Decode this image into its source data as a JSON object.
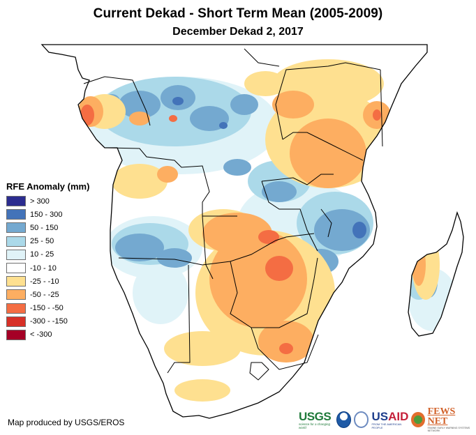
{
  "header": {
    "title": "Current Dekad - Short Term Mean (2005-2009)",
    "subtitle": "December Dekad 2, 2017"
  },
  "legend": {
    "title": "RFE Anomaly (mm)",
    "items": [
      {
        "label": "> 300",
        "color": "#2b2c8f"
      },
      {
        "label": "150 - 300",
        "color": "#4373b9"
      },
      {
        "label": "50 - 150",
        "color": "#74a9d0"
      },
      {
        "label": "25 - 50",
        "color": "#abd9e9"
      },
      {
        "label": "10 - 25",
        "color": "#e0f3f8"
      },
      {
        "label": "-10 - 10",
        "color": "#ffffff"
      },
      {
        "label": "-25 - -10",
        "color": "#fee090"
      },
      {
        "label": "-50 - -25",
        "color": "#fdae61"
      },
      {
        "label": "-150 - -50",
        "color": "#f46d43"
      },
      {
        "label": "-300 - -150",
        "color": "#d73027"
      },
      {
        "label": "< -300",
        "color": "#a50026"
      }
    ]
  },
  "footer": {
    "credit": "Map produced by USGS/EROS",
    "logos": {
      "usgs": {
        "word": "USGS",
        "tag": "science for a changing world"
      },
      "noaa": {
        "name": "NOAA"
      },
      "usaid": {
        "word_blue": "US",
        "word_red": "AID",
        "tag": "FROM THE AMERICAN PEOPLE"
      },
      "fews": {
        "word": "FEWS NET",
        "tag": "FAMINE EARLY WARNING SYSTEMS NETWORK"
      }
    }
  },
  "map": {
    "region": "Southern and Eastern Africa",
    "style": {
      "border_color": "#000000",
      "land_background": "#ffffff"
    }
  }
}
